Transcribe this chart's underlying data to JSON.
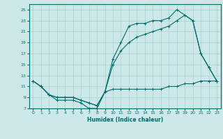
{
  "xlabel": "Humidex (Indice chaleur)",
  "bg_color": "#cde8e8",
  "line_color": "#006b6b",
  "grid_color": "#aacfcf",
  "ylim": [
    7,
    26
  ],
  "xlim": [
    -0.5,
    23.5
  ],
  "yticks": [
    7,
    9,
    11,
    13,
    15,
    17,
    19,
    21,
    23,
    25
  ],
  "xticks": [
    0,
    1,
    2,
    3,
    4,
    5,
    6,
    7,
    8,
    9,
    10,
    11,
    12,
    13,
    14,
    15,
    16,
    17,
    18,
    19,
    20,
    21,
    22,
    23
  ],
  "line1_x": [
    0,
    1,
    2,
    3,
    4,
    5,
    6,
    7,
    8,
    9,
    10,
    11,
    12,
    13,
    14,
    15,
    16,
    17,
    18,
    19,
    20,
    21,
    22,
    23
  ],
  "line1_y": [
    12,
    11,
    9.5,
    8.5,
    8.5,
    8.5,
    8,
    7,
    7,
    10,
    10.5,
    10.5,
    10.5,
    10.5,
    10.5,
    10.5,
    10.5,
    11,
    11,
    11.5,
    11.5,
    12,
    12,
    12
  ],
  "line2_x": [
    0,
    1,
    2,
    3,
    4,
    5,
    6,
    7,
    8,
    9,
    10,
    11,
    12,
    13,
    14,
    15,
    16,
    17,
    18,
    19,
    20,
    21,
    22,
    23
  ],
  "line2_y": [
    12,
    11,
    9.5,
    9,
    9,
    9,
    8.5,
    8,
    7.5,
    10,
    16,
    19,
    22,
    22.5,
    22.5,
    23,
    23,
    23.5,
    25,
    24,
    23,
    17,
    14.5,
    12
  ],
  "line3_x": [
    0,
    1,
    2,
    3,
    4,
    5,
    6,
    7,
    8,
    9,
    10,
    11,
    12,
    13,
    14,
    15,
    16,
    17,
    18,
    19,
    20,
    21,
    22,
    23
  ],
  "line3_y": [
    12,
    11,
    9.5,
    9,
    9,
    9,
    8.5,
    8,
    7.5,
    10,
    15,
    17.5,
    19,
    20,
    20.5,
    21,
    21.5,
    22,
    23,
    24,
    23,
    17,
    14.5,
    12
  ]
}
